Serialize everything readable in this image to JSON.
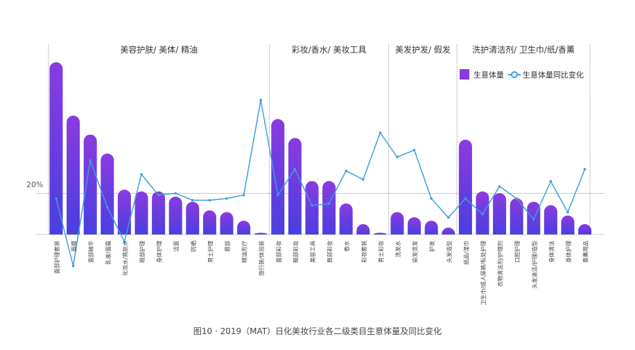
{
  "chart_data": {
    "type": "bar",
    "title": "",
    "caption": "图10 · 2019（MAT）日化美妆行业各二级类目生意体量及同比变化",
    "y_reference_label": "20%",
    "legend": {
      "position": "top-right",
      "bar_label": "生意体量",
      "line_label": "生意体量同比变化"
    },
    "colors": {
      "bar_top": "#8a3be0",
      "bar_bottom": "#4a3fe0",
      "line": "#3a9fe0",
      "divider": "#999999",
      "baseline": "#cccccc"
    },
    "groups": [
      {
        "label": "美容护肤/ 美体/ 精油",
        "start": 0,
        "end": 12
      },
      {
        "label": "彩妆/香水/ 美妆工具",
        "start": 13,
        "end": 19
      },
      {
        "label": "美发护发/ 假发",
        "start": 20,
        "end": 23
      },
      {
        "label": "洗护清洁剂/ 卫生巾/纸/香薰",
        "start": 24,
        "end": 31
      }
    ],
    "categories": [
      "面部护理套装",
      "面膜",
      "面部精华",
      "乳液/面霜",
      "化妆水/爽肤水",
      "眼部护理",
      "身体护理",
      "洁面",
      "防晒",
      "男士护理",
      "唇部",
      "精油芳疗",
      "旅行装/体验装",
      "面部彩妆",
      "眼部彩妆",
      "美容工具",
      "唇部彩妆",
      "香水",
      "彩妆套装",
      "男士彩妆",
      "洗发水",
      "染发烫发",
      "护发",
      "头发造型",
      "纸品/湿巾",
      "卫生巾/成人尿裤/私处护理",
      "衣物清洁剂/护理剂",
      "口腔护理",
      "头发清洁/护理/造型",
      "身体清洁",
      "身体护理",
      "香薰用品"
    ],
    "series": [
      {
        "name": "生意体量",
        "type": "bar",
        "values": [
          100,
          69,
          58,
          47,
          26,
          25,
          25,
          22,
          19,
          14,
          13,
          8,
          1,
          67,
          56,
          31,
          31,
          18,
          6,
          1,
          13,
          10,
          8,
          4,
          55,
          25,
          24,
          21,
          19,
          17,
          11,
          6
        ]
      },
      {
        "name": "生意体量同比变化",
        "type": "line",
        "values": [
          17,
          -22,
          39,
          12,
          -8,
          31,
          19,
          20,
          16,
          16,
          17,
          19,
          74,
          19,
          34,
          13,
          14,
          33,
          28,
          55,
          41,
          45,
          17,
          6,
          17,
          8,
          24,
          17,
          5,
          27,
          9,
          34
        ]
      }
    ]
  }
}
